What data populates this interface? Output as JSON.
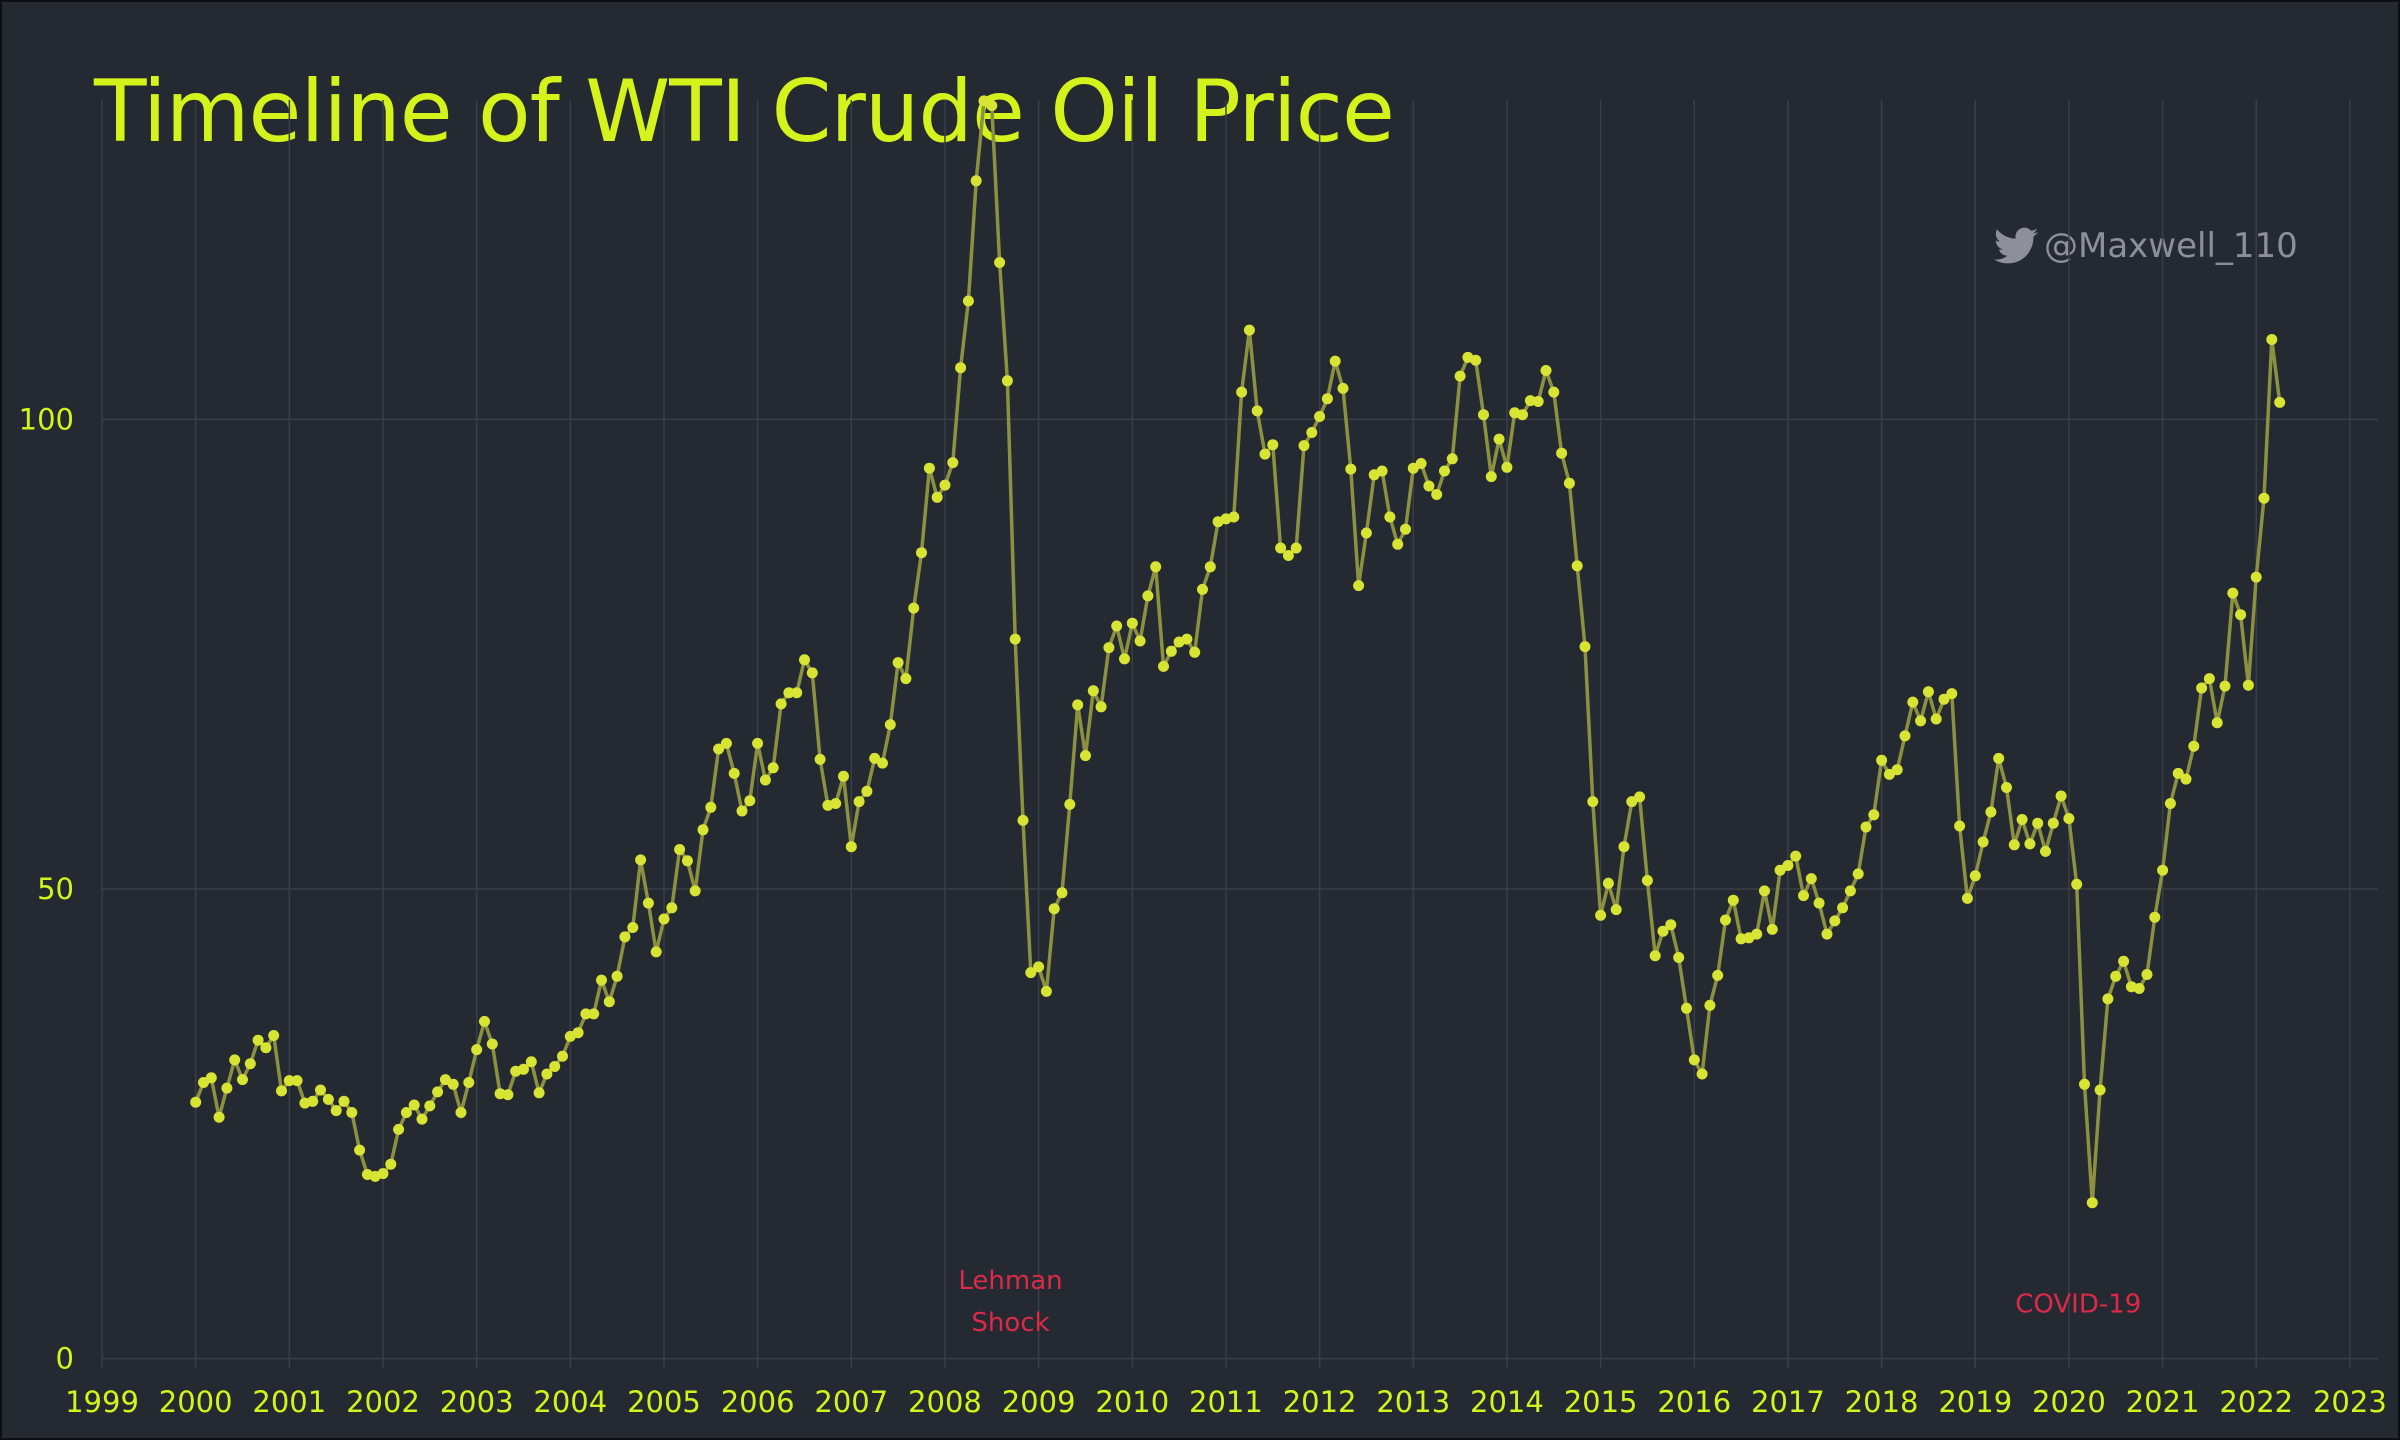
{
  "chart_data": {
    "type": "line",
    "title": "Timeline of WTI Crude Oil Price",
    "xlabel": "",
    "ylabel": "",
    "x_tick_labels": [
      "1999",
      "2000",
      "2001",
      "2002",
      "2003",
      "2004",
      "2005",
      "2006",
      "2007",
      "2008",
      "2009",
      "2010",
      "2011",
      "2012",
      "2013",
      "2014",
      "2015",
      "2016",
      "2017",
      "2018",
      "2019",
      "2020",
      "2021",
      "2022",
      "2023"
    ],
    "y_tick_labels": [
      "0",
      "50",
      "100"
    ],
    "y_ticks": [
      0,
      50,
      100
    ],
    "xlim": [
      1999,
      2023.3
    ],
    "ylim": [
      -1,
      134
    ],
    "grid": true,
    "series": [
      {
        "start_year": 2000,
        "frequency": "monthly",
        "color": "#d8e433",
        "line_color": "#8c9140",
        "values": [
          27.3,
          29.4,
          29.9,
          25.7,
          28.8,
          31.8,
          29.7,
          31.4,
          33.9,
          33.1,
          34.4,
          28.5,
          29.6,
          29.6,
          27.2,
          27.4,
          28.6,
          27.6,
          26.4,
          27.4,
          26.2,
          22.2,
          19.6,
          19.4,
          19.7,
          20.7,
          24.4,
          26.2,
          27.0,
          25.5,
          26.9,
          28.4,
          29.7,
          29.2,
          26.2,
          29.4,
          32.9,
          35.9,
          33.5,
          28.2,
          28.1,
          30.6,
          30.8,
          31.6,
          28.3,
          30.3,
          31.1,
          32.2,
          34.3,
          34.7,
          36.7,
          36.7,
          40.3,
          38.0,
          40.7,
          44.9,
          45.9,
          53.1,
          48.5,
          43.3,
          46.8,
          48.0,
          54.2,
          53.0,
          49.8,
          56.3,
          58.7,
          64.9,
          65.5,
          62.3,
          58.3,
          59.4,
          65.5,
          61.6,
          62.9,
          69.7,
          70.9,
          70.9,
          74.4,
          73.0,
          63.8,
          58.9,
          59.1,
          62.0,
          54.5,
          59.3,
          60.4,
          63.9,
          63.4,
          67.5,
          74.1,
          72.4,
          79.9,
          85.8,
          94.8,
          91.7,
          93.0,
          95.4,
          105.5,
          112.6,
          125.4,
          133.9,
          133.4,
          116.7,
          104.1,
          76.6,
          57.3,
          41.1,
          41.7,
          39.1,
          47.9,
          49.6,
          59.0,
          69.6,
          64.2,
          71.1,
          69.4,
          75.7,
          78.0,
          74.5,
          78.3,
          76.4,
          81.2,
          84.3,
          73.7,
          75.3,
          76.3,
          76.6,
          75.2,
          81.9,
          84.3,
          89.1,
          89.4,
          89.6,
          102.9,
          109.5,
          100.9,
          96.3,
          97.3,
          86.3,
          85.5,
          86.3,
          97.2,
          98.6,
          100.3,
          102.2,
          106.2,
          103.3,
          94.7,
          82.3,
          87.9,
          94.1,
          94.5,
          89.6,
          86.7,
          88.3,
          94.8,
          95.3,
          92.9,
          92.0,
          94.5,
          95.8,
          104.6,
          106.6,
          106.3,
          100.5,
          93.9,
          97.9,
          94.9,
          100.7,
          100.5,
          102.0,
          101.9,
          105.2,
          102.9,
          96.4,
          93.2,
          84.4,
          75.8,
          59.3,
          47.2,
          50.6,
          47.8,
          54.5,
          59.3,
          59.8,
          50.9,
          42.9,
          45.5,
          46.2,
          42.7,
          37.3,
          31.8,
          30.3,
          37.6,
          40.8,
          46.7,
          48.8,
          44.7,
          44.8,
          45.2,
          49.8,
          45.7,
          52.0,
          52.5,
          53.5,
          49.3,
          51.1,
          48.5,
          45.2,
          46.6,
          48.0,
          49.8,
          51.6,
          56.6,
          57.9,
          63.7,
          62.2,
          62.7,
          66.3,
          69.9,
          67.9,
          71.0,
          68.1,
          70.2,
          70.8,
          56.7,
          49.0,
          51.4,
          55.0,
          58.2,
          63.9,
          60.8,
          54.7,
          57.4,
          54.8,
          57.0,
          54.0,
          57.0,
          59.9,
          57.5,
          50.5,
          29.2,
          16.6,
          28.6,
          38.3,
          40.7,
          42.3,
          39.6,
          39.4,
          40.9,
          47.0,
          52.0,
          59.1,
          62.3,
          61.7,
          65.2,
          71.4,
          72.4,
          67.7,
          71.6,
          81.5,
          79.2,
          71.7,
          83.2,
          91.6,
          108.5,
          101.8
        ]
      }
    ],
    "annotations": [
      {
        "lines": [
          "Lehman",
          "Shock"
        ],
        "x": 2008.7,
        "y": 7.4,
        "color": "#dc2a48"
      },
      {
        "lines": [
          "COVID-19"
        ],
        "x": 2020.1,
        "y": 4.9,
        "color": "#dc2a48"
      }
    ]
  },
  "credit": {
    "text": "@Maxwell_110",
    "icon": "twitter-bird-icon"
  },
  "colors": {
    "background": "#252931",
    "title": "#d4f21c",
    "grid": "#3a3e47",
    "annotation": "#dc2a48"
  }
}
